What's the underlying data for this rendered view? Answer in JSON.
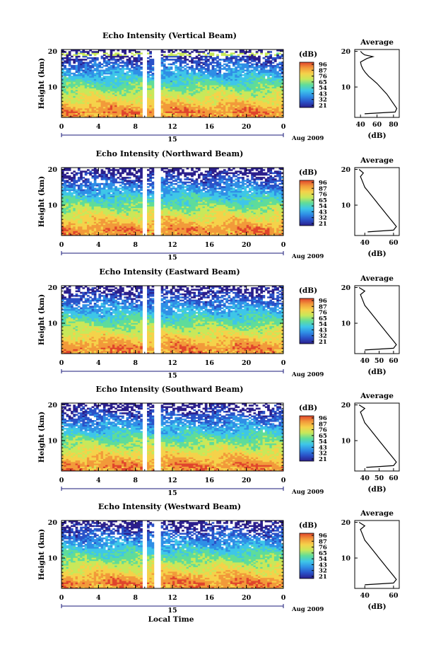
{
  "chart_data": [
    {
      "type": "heatmap",
      "title": "Echo Intensity (Vertical Beam)",
      "ylabel": "Height (km)",
      "x_ticks": [
        "0",
        "4",
        "8",
        "12",
        "16",
        "20",
        "0"
      ],
      "y_ticks": [
        "10",
        "20"
      ],
      "ylim": [
        1.5,
        20.5
      ],
      "xlim": [
        0,
        24
      ],
      "date_tick": "15",
      "date_label": "Aug 2009",
      "colorbar": {
        "unit": "(dB)",
        "levels": [
          "96",
          "87",
          "76",
          "65",
          "54",
          "43",
          "32",
          "21"
        ]
      },
      "data_gaps_hours": [
        [
          8.7,
          9.3
        ],
        [
          10.1,
          10.8
        ]
      ],
      "profile": {
        "title": "Average",
        "xlabel": "(dB)",
        "x_ticks": [
          "40",
          "60",
          "80"
        ],
        "xlim": [
          33,
          87
        ],
        "heights": [
          2.5,
          3,
          4,
          5,
          6,
          7,
          8,
          9,
          10,
          11,
          12,
          13,
          14,
          15,
          16,
          17,
          18,
          18.5,
          19,
          19.5,
          20
        ],
        "values": [
          45,
          82,
          84,
          81,
          78,
          75,
          72,
          68,
          64,
          60,
          55,
          50,
          46,
          43,
          41,
          40,
          48,
          55,
          45,
          42,
          40
        ]
      }
    },
    {
      "type": "heatmap",
      "title": "Echo Intensity (Northward Beam)",
      "ylabel": "Height (km)",
      "x_ticks": [
        "0",
        "4",
        "8",
        "12",
        "16",
        "20",
        "0"
      ],
      "y_ticks": [
        "10",
        "20"
      ],
      "ylim": [
        1.5,
        20.5
      ],
      "xlim": [
        0,
        24
      ],
      "date_tick": "15",
      "date_label": "Aug 2009",
      "colorbar": {
        "unit": "(dB)",
        "levels": [
          "96",
          "87",
          "76",
          "65",
          "54",
          "43",
          "32",
          "21"
        ]
      },
      "data_gaps_hours": [
        [
          8.7,
          9.3
        ],
        [
          10.1,
          10.8
        ]
      ],
      "profile": {
        "title": "Average",
        "xlabel": "(dB)",
        "x_ticks": [
          "40",
          "60"
        ],
        "xlim": [
          33,
          64
        ],
        "heights": [
          2.5,
          3,
          4,
          5,
          6,
          7,
          8,
          9,
          10,
          11,
          12,
          13,
          14,
          15,
          16,
          17,
          18,
          19,
          20
        ],
        "values": [
          42,
          60,
          62,
          60,
          58,
          56,
          54,
          52,
          50,
          48,
          46,
          44,
          42,
          40,
          39,
          38,
          37,
          39,
          36
        ]
      }
    },
    {
      "type": "heatmap",
      "title": "Echo Intensity (Eastward Beam)",
      "ylabel": "Height (km)",
      "x_ticks": [
        "0",
        "4",
        "8",
        "12",
        "16",
        "20",
        "0"
      ],
      "y_ticks": [
        "10",
        "20"
      ],
      "ylim": [
        1.5,
        20.5
      ],
      "xlim": [
        0,
        24
      ],
      "date_tick": "15",
      "date_label": "Aug 2009",
      "colorbar": {
        "unit": "(dB)",
        "levels": [
          "96",
          "87",
          "76",
          "65",
          "54",
          "43",
          "32",
          "21"
        ]
      },
      "data_gaps_hours": [
        [
          8.7,
          9.3
        ],
        [
          10.1,
          10.8
        ]
      ],
      "profile": {
        "title": "Average",
        "xlabel": "(dB)",
        "x_ticks": [
          "40",
          "50",
          "60"
        ],
        "xlim": [
          33,
          64
        ],
        "heights": [
          2.5,
          3,
          4,
          5,
          6,
          7,
          8,
          9,
          10,
          11,
          12,
          13,
          14,
          15,
          16,
          17,
          18,
          19,
          20
        ],
        "values": [
          40,
          60,
          62,
          60,
          58,
          56,
          54,
          52,
          50,
          48,
          46,
          44,
          42,
          40,
          39,
          38,
          37,
          40,
          36
        ]
      }
    },
    {
      "type": "heatmap",
      "title": "Echo Intensity (Southward Beam)",
      "ylabel": "Height (km)",
      "x_ticks": [
        "0",
        "4",
        "8",
        "12",
        "16",
        "20",
        "0"
      ],
      "y_ticks": [
        "10",
        "20"
      ],
      "ylim": [
        1.5,
        20.5
      ],
      "xlim": [
        0,
        24
      ],
      "date_tick": "15",
      "date_label": "Aug 2009",
      "colorbar": {
        "unit": "(dB)",
        "levels": [
          "96",
          "87",
          "76",
          "65",
          "54",
          "43",
          "32",
          "21"
        ]
      },
      "data_gaps_hours": [
        [
          8.7,
          9.3
        ],
        [
          10.1,
          10.8
        ]
      ],
      "profile": {
        "title": "Average",
        "xlabel": "(dB)",
        "x_ticks": [
          "40",
          "50",
          "60"
        ],
        "xlim": [
          33,
          64
        ],
        "heights": [
          2.5,
          3,
          4,
          5,
          6,
          7,
          8,
          9,
          10,
          11,
          12,
          13,
          14,
          15,
          16,
          17,
          18,
          19,
          20
        ],
        "values": [
          41,
          60,
          62,
          60,
          58,
          56,
          54,
          52,
          50,
          48,
          46,
          44,
          42,
          40,
          39,
          38,
          37,
          40,
          36
        ]
      }
    },
    {
      "type": "heatmap",
      "title": "Echo Intensity (Westward Beam)",
      "ylabel": "Height (km)",
      "x_ticks": [
        "0",
        "4",
        "8",
        "12",
        "16",
        "20",
        "0"
      ],
      "y_ticks": [
        "10",
        "20"
      ],
      "ylim": [
        1.5,
        20.5
      ],
      "xlim": [
        0,
        24
      ],
      "date_tick": "15",
      "date_label": "Aug 2009",
      "xlabel": "Local Time",
      "colorbar": {
        "unit": "(dB)",
        "levels": [
          "96",
          "87",
          "76",
          "65",
          "54",
          "43",
          "32",
          "21"
        ]
      },
      "data_gaps_hours": [
        [
          8.7,
          9.3
        ],
        [
          10.1,
          10.8
        ]
      ],
      "profile": {
        "title": "Average",
        "xlabel": "(dB)",
        "x_ticks": [
          "40",
          "60"
        ],
        "xlim": [
          33,
          64
        ],
        "heights": [
          2.5,
          3,
          4,
          5,
          6,
          7,
          8,
          9,
          10,
          11,
          12,
          13,
          14,
          15,
          16,
          17,
          18,
          19,
          20
        ],
        "values": [
          40,
          60,
          62,
          60,
          58,
          56,
          54,
          52,
          50,
          48,
          46,
          44,
          42,
          40,
          39,
          38,
          37,
          40,
          36
        ]
      }
    }
  ],
  "colors": {
    "colormap": [
      "#2b1f8c",
      "#2a52c8",
      "#2f8fe6",
      "#3ec6e8",
      "#5fdc9a",
      "#c8e85a",
      "#f5d24a",
      "#f29a3a",
      "#e0452c"
    ],
    "background": "#ffffff",
    "axis": "#000000",
    "date_axis": "#1a1a7a"
  }
}
